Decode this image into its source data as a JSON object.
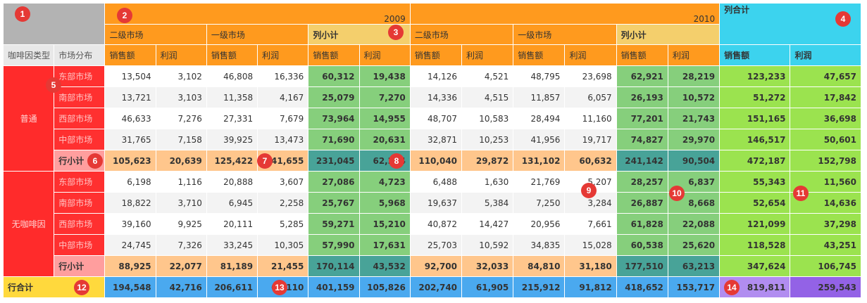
{
  "years": [
    "2009",
    "2010"
  ],
  "col_total_label": "列合计",
  "market_levels": [
    "二级市场",
    "一级市场"
  ],
  "col_subtotal_label": "列小计",
  "measures": [
    "销售额",
    "利润"
  ],
  "row_header_labels": [
    "咖啡因类型",
    "市场分布"
  ],
  "groups": [
    {
      "name": "普通",
      "rows": [
        {
          "market": "东部市场",
          "values": [
            "13,504",
            "3,102",
            "46,808",
            "16,336",
            "60,312",
            "19,438",
            "14,126",
            "4,521",
            "48,795",
            "23,698",
            "62,921",
            "28,219",
            "123,233",
            "47,657"
          ]
        },
        {
          "market": "南部市场",
          "values": [
            "13,721",
            "3,103",
            "11,358",
            "4,167",
            "25,079",
            "7,270",
            "14,336",
            "4,515",
            "11,857",
            "6,057",
            "26,193",
            "10,572",
            "51,272",
            "17,842"
          ]
        },
        {
          "market": "西部市场",
          "values": [
            "46,633",
            "7,276",
            "27,331",
            "7,679",
            "73,964",
            "14,955",
            "48,707",
            "10,583",
            "28,494",
            "11,160",
            "77,201",
            "21,743",
            "151,165",
            "36,698"
          ]
        },
        {
          "market": "中部市场",
          "values": [
            "31,765",
            "7,158",
            "39,925",
            "13,473",
            "71,690",
            "20,631",
            "32,871",
            "10,253",
            "41,956",
            "19,717",
            "74,827",
            "29,970",
            "146,517",
            "50,601"
          ]
        }
      ],
      "subtotal": {
        "label": "行小计",
        "values": [
          "105,623",
          "20,639",
          "125,422",
          "41,655",
          "231,045",
          "62,294",
          "110,040",
          "29,872",
          "131,102",
          "60,632",
          "241,142",
          "90,504",
          "472,187",
          "152,798"
        ]
      }
    },
    {
      "name": "无咖啡因",
      "rows": [
        {
          "market": "东部市场",
          "values": [
            "6,198",
            "1,116",
            "20,888",
            "3,607",
            "27,086",
            "4,723",
            "6,488",
            "1,630",
            "21,769",
            "5,207",
            "28,257",
            "6,837",
            "55,343",
            "11,560"
          ]
        },
        {
          "market": "南部市场",
          "values": [
            "18,822",
            "3,710",
            "6,945",
            "2,258",
            "25,767",
            "5,968",
            "19,637",
            "5,384",
            "7,250",
            "3,284",
            "26,887",
            "8,668",
            "52,654",
            "14,636"
          ]
        },
        {
          "market": "西部市场",
          "values": [
            "39,160",
            "9,925",
            "20,111",
            "5,285",
            "59,271",
            "15,210",
            "40,872",
            "14,427",
            "20,956",
            "7,661",
            "61,828",
            "22,088",
            "121,099",
            "37,298"
          ]
        },
        {
          "market": "中部市场",
          "values": [
            "24,745",
            "7,326",
            "33,245",
            "10,305",
            "57,990",
            "17,631",
            "25,703",
            "10,592",
            "34,835",
            "15,028",
            "60,538",
            "25,620",
            "118,528",
            "43,251"
          ]
        }
      ],
      "subtotal": {
        "label": "行小计",
        "values": [
          "88,925",
          "22,077",
          "81,189",
          "21,455",
          "170,114",
          "43,532",
          "92,700",
          "32,033",
          "84,810",
          "31,180",
          "177,510",
          "63,213",
          "347,624",
          "106,745"
        ]
      }
    }
  ],
  "grand_total": {
    "label": "行合计",
    "values": [
      "194,548",
      "42,716",
      "206,611",
      "63,110",
      "401,159",
      "105,826",
      "202,740",
      "61,905",
      "215,912",
      "91,812",
      "418,652",
      "153,717",
      "819,811",
      "259,543"
    ]
  },
  "badges": [
    "1",
    "2",
    "3",
    "4",
    "5",
    "6",
    "7",
    "8",
    "9",
    "10",
    "11",
    "12",
    "13",
    "14"
  ],
  "colors": {
    "corner_gray": "#b3b3b3",
    "header_orange": "#ff9a1e",
    "subtotal_header_yellow": "#f4cf6c",
    "col_total_cyan": "#3cd3ee",
    "row_header_red": "#ff2b2b",
    "market_cell_red": "#ff3030",
    "subtotal_label_pink": "#ff9e9e",
    "body_white": "#ffffff",
    "body_gray": "#f3f3f3",
    "col_subtotal_green": "#86cf7c",
    "row_subtotal_peach": "#ffc68c",
    "cross_subtotal_teal": "#48a398",
    "col_total_green": "#9be34f",
    "grand_total_yellow": "#ffd93d",
    "grand_total_blue": "#4aa9ef",
    "grand_total_lavender": "#b18df0",
    "grand_total_purple": "#9362e6",
    "badge_red": "#e53935"
  }
}
